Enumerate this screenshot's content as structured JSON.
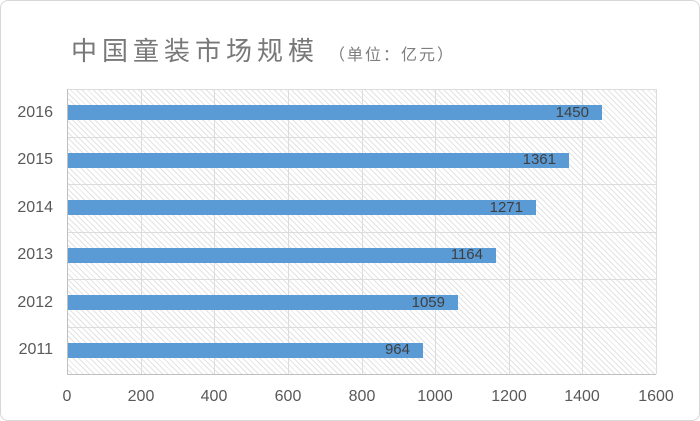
{
  "chart": {
    "title": "中国童装市场规模",
    "subtitle": "（单位：亿元）"
  },
  "chart_data": {
    "type": "bar",
    "orientation": "horizontal",
    "title": "中国童装市场规模",
    "unit_label": "（单位：亿元）",
    "categories": [
      "2016",
      "2015",
      "2014",
      "2013",
      "2012",
      "2011"
    ],
    "values": [
      1450,
      1361,
      1271,
      1164,
      1059,
      964
    ],
    "xlabel": "",
    "ylabel": "",
    "xlim": [
      0,
      1600
    ],
    "x_ticks": [
      0,
      200,
      400,
      600,
      800,
      1000,
      1200,
      1400,
      1600
    ],
    "grid": true,
    "data_labels_position": "inside-end",
    "legend": "none",
    "bar_color": "#5B9BD5",
    "plot_background": "light diagonal hatch pattern"
  },
  "colors": {
    "bar": "#5B9BD5",
    "gridline": "#dcdcdc",
    "axis_line": "#bfbfbf",
    "title_text": "#787878",
    "axis_text": "#595959",
    "data_label_text": "#3f3f3f",
    "card_border": "#d7d7d7",
    "background": "#ffffff"
  }
}
